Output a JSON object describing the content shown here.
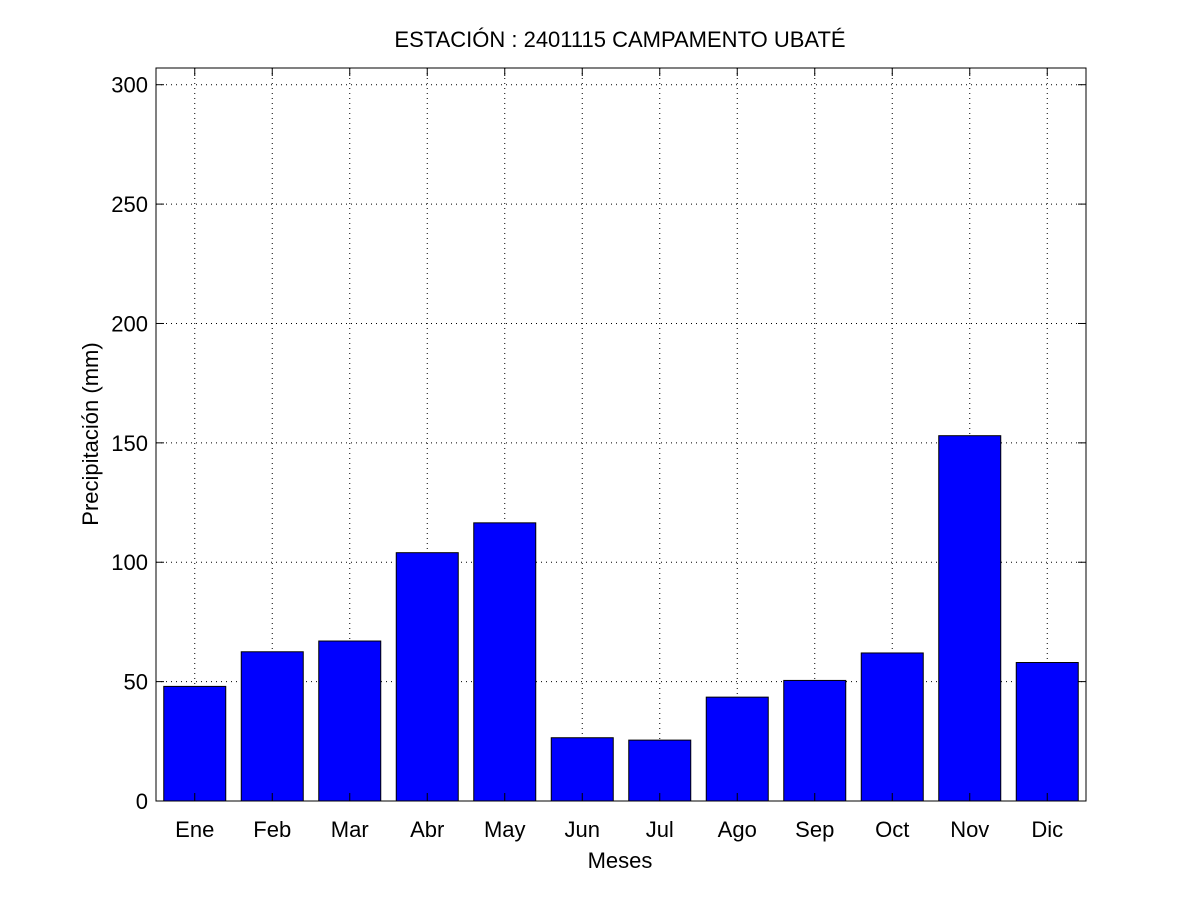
{
  "chart_data": {
    "type": "bar",
    "title": "ESTACIÓN :  2401115  CAMPAMENTO UBATÉ",
    "xlabel": "Meses",
    "ylabel": "Precipitación (mm)",
    "categories": [
      "Ene",
      "Feb",
      "Mar",
      "Abr",
      "May",
      "Jun",
      "Jul",
      "Ago",
      "Sep",
      "Oct",
      "Nov",
      "Dic"
    ],
    "values": [
      48,
      62.5,
      67,
      104,
      116.5,
      26.5,
      25.5,
      43.5,
      50.5,
      62,
      153,
      58
    ],
    "ylim": [
      0,
      307
    ],
    "yticks": [
      0,
      50,
      100,
      150,
      200,
      250,
      300
    ],
    "grid": true,
    "bar_color": "#0000ff"
  }
}
